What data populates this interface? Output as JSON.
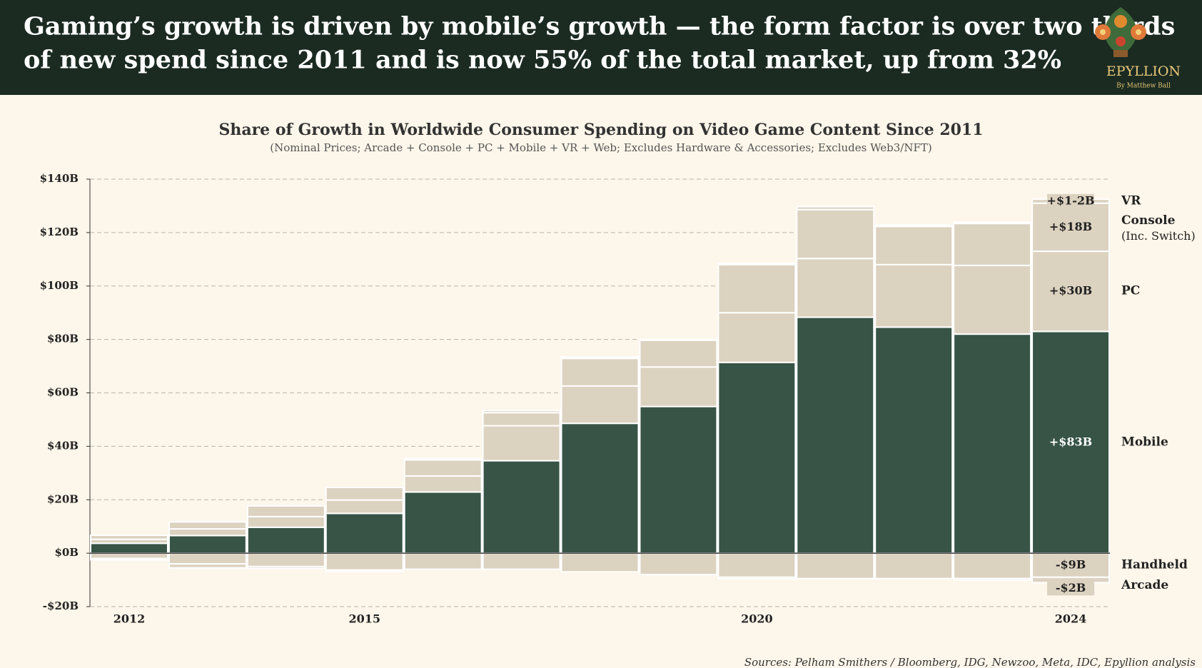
{
  "header": {
    "title_lines": [
      "Gaming’s growth is driven by mobile’s growth — the form factor is over two thirds",
      "of new spend since 2011 and is now 55% of the total market, up from 32%"
    ],
    "logo": "EPYLLION",
    "logo_byline": "By Matthew Ball"
  },
  "chart_data": {
    "type": "stacked_bar",
    "title": "Share of Growth in Worldwide Consumer Spending on Video Game Content Since 2011",
    "subtitle": "(Nominal Prices; Arcade + Console + PC + Mobile + VR + Web; Excludes Hardware & Accessories; Excludes Web3/NFT)",
    "categories": [
      "2012",
      null,
      null,
      "2015",
      null,
      null,
      null,
      null,
      "2020",
      null,
      null,
      null,
      "2024"
    ],
    "ylim": [
      -20,
      140
    ],
    "yticks": [
      {
        "value": -20,
        "label": "-$20B"
      },
      {
        "value": 0,
        "label": "$0B"
      },
      {
        "value": 20,
        "label": "$20B"
      },
      {
        "value": 40,
        "label": "$40B"
      },
      {
        "value": 60,
        "label": "$60B"
      },
      {
        "value": 80,
        "label": "$80B"
      },
      {
        "value": 100,
        "label": "$100B"
      },
      {
        "value": 120,
        "label": "$120B"
      },
      {
        "value": 140,
        "label": "$140B"
      }
    ],
    "grid": true,
    "series": [
      {
        "name": "Mobile",
        "color": "#375446",
        "values": [
          3.7,
          6.6,
          9.7,
          14.9,
          22.9,
          34.6,
          48.6,
          54.9,
          71.4,
          88.3,
          84.6,
          82,
          83
        ],
        "value_labels": [
          null,
          null,
          null,
          null,
          null,
          null,
          null,
          null,
          null,
          null,
          null,
          null,
          "+$83B"
        ]
      },
      {
        "name": "PC",
        "color": "#dcd2c0",
        "values": [
          1.5,
          2.5,
          4,
          5,
          6,
          13.1,
          14,
          14.8,
          18.6,
          22,
          23.4,
          25.7,
          30
        ],
        "value_labels": [
          null,
          null,
          null,
          null,
          null,
          null,
          null,
          null,
          null,
          null,
          null,
          null,
          "+$30B"
        ]
      },
      {
        "name": "Console",
        "note": "(Inc. Switch)",
        "color": "#dcd2c0",
        "values": [
          1.5,
          2.6,
          4,
          4.7,
          6,
          4.9,
          10.3,
          10,
          18,
          18.3,
          14.3,
          15.7,
          18
        ],
        "value_labels": [
          null,
          null,
          null,
          null,
          null,
          null,
          null,
          null,
          null,
          null,
          null,
          null,
          "+$18B"
        ]
      },
      {
        "name": "VR",
        "color": "#dcd2c0",
        "values": [
          0,
          0,
          0,
          0,
          0.5,
          0.8,
          0.5,
          0.3,
          0.5,
          1.1,
          0.5,
          0.5,
          1.5
        ],
        "value_labels": [
          null,
          null,
          null,
          null,
          null,
          null,
          null,
          null,
          null,
          null,
          null,
          null,
          "+$1-2B"
        ]
      },
      {
        "name": "Handheld",
        "color": "#dcd2c0",
        "values": [
          -2,
          -4,
          -5,
          -6.3,
          -6,
          -6,
          -7,
          -8,
          -9,
          -9.5,
          -9.5,
          -9.5,
          -9
        ],
        "value_labels": [
          null,
          null,
          null,
          null,
          null,
          null,
          null,
          null,
          null,
          null,
          null,
          null,
          "-$9B"
        ]
      },
      {
        "name": "Arcade",
        "color": "#dcd2c0",
        "values": [
          -0.5,
          -1.5,
          -0.7,
          -0.5,
          0,
          0,
          0,
          0,
          -0.6,
          0,
          0,
          -0.6,
          -2
        ],
        "value_labels": [
          null,
          null,
          null,
          null,
          null,
          null,
          null,
          null,
          null,
          null,
          null,
          null,
          "-$2B"
        ]
      }
    ],
    "source": "Sources: Pelham Smithers / Bloomberg, IDG, Newzoo, Meta, IDC, Epyllion analysis"
  }
}
